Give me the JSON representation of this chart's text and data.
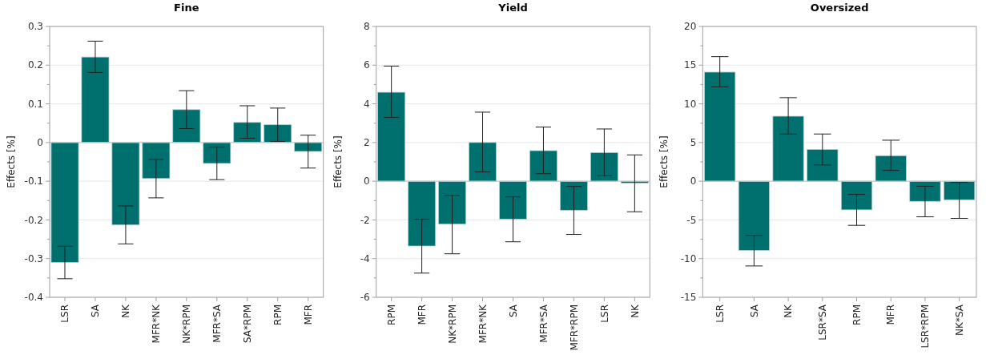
{
  "chart_data": [
    {
      "type": "bar",
      "title": "Fine",
      "ylabel": "Effects [%]",
      "categories": [
        "LSR",
        "SA",
        "NK",
        "MFR*NK",
        "NK*RPM",
        "MFR*SA",
        "SA*RPM",
        "RPM",
        "MFR"
      ],
      "values": [
        -0.31,
        0.221,
        -0.213,
        -0.093,
        0.085,
        -0.054,
        0.052,
        0.046,
        -0.023
      ],
      "color": "#00706f",
      "errors": [
        [
          -0.352,
          -0.268
        ],
        [
          0.181,
          0.262
        ],
        [
          -0.262,
          -0.164
        ],
        [
          -0.143,
          -0.044
        ],
        [
          0.036,
          0.134
        ],
        [
          -0.096,
          -0.012
        ],
        [
          0.011,
          0.095
        ],
        [
          0.003,
          0.089
        ],
        [
          -0.066,
          0.019
        ]
      ],
      "ylim": [
        -0.4,
        0.3
      ],
      "yticks": [
        {
          "value": -0.4,
          "label": "-0.4"
        },
        {
          "value": -0.35,
          "label": null
        },
        {
          "value": -0.3,
          "label": "-0.3"
        },
        {
          "value": -0.25,
          "label": null
        },
        {
          "value": -0.2,
          "label": "-0.2"
        },
        {
          "value": -0.15,
          "label": null
        },
        {
          "value": -0.1,
          "label": "-0.1"
        },
        {
          "value": -0.05,
          "label": null
        },
        0,
        {
          "value": 0.05,
          "label": null
        },
        0.1,
        {
          "value": 0.15,
          "label": null
        },
        0.2,
        {
          "value": 0.25,
          "label": null
        },
        0.3
      ],
      "grid": "y"
    },
    {
      "type": "bar",
      "title": "Yield",
      "ylabel": "Effects [%]",
      "categories": [
        "RPM",
        "MFR",
        "NK*RPM",
        "MFR*NK",
        "SA",
        "MFR*SA",
        "MFR*RPM",
        "LSR",
        "NK"
      ],
      "values": [
        4.6,
        -3.35,
        -2.22,
        2.0,
        -1.96,
        1.58,
        -1.5,
        1.48,
        -0.1
      ],
      "color": "#00706f",
      "errors": [
        [
          3.3,
          5.95
        ],
        [
          -4.75,
          -1.97
        ],
        [
          -3.75,
          -0.73
        ],
        [
          0.48,
          3.57
        ],
        [
          -3.13,
          -0.81
        ],
        [
          0.39,
          2.8
        ],
        [
          -2.75,
          -0.27
        ],
        [
          0.28,
          2.7
        ],
        [
          -1.58,
          1.36
        ]
      ],
      "ylim": [
        -6,
        8
      ],
      "yticks": [
        -6,
        {
          "value": -5,
          "label": null
        },
        -4,
        {
          "value": -3,
          "label": null
        },
        -2,
        {
          "value": -1,
          "label": null
        },
        0,
        {
          "value": 1,
          "label": null
        },
        2,
        {
          "value": 3,
          "label": null
        },
        4,
        {
          "value": 5,
          "label": null
        },
        6,
        {
          "value": 7,
          "label": null
        },
        8
      ],
      "grid": "y"
    },
    {
      "type": "bar",
      "title": "Oversized",
      "ylabel": "Effects [%]",
      "categories": [
        "LSR",
        "SA",
        "NK",
        "LSR*SA",
        "RPM",
        "MFR",
        "LSR*RPM",
        "NK*SA"
      ],
      "values": [
        14.1,
        -8.95,
        8.4,
        4.1,
        -3.7,
        3.3,
        -2.6,
        -2.4
      ],
      "color": "#00706f",
      "errors": [
        [
          12.2,
          16.1
        ],
        [
          -10.95,
          -7.0
        ],
        [
          6.1,
          10.8
        ],
        [
          2.1,
          6.1
        ],
        [
          -5.7,
          -1.7
        ],
        [
          1.4,
          5.3
        ],
        [
          -4.6,
          -0.65
        ],
        [
          -4.8,
          -0.15
        ]
      ],
      "ylim": [
        -15,
        20
      ],
      "yticks": [
        -15,
        {
          "value": -12.5,
          "label": null
        },
        -10,
        {
          "value": -7.5,
          "label": null
        },
        -5,
        {
          "value": -2.5,
          "label": null
        },
        0,
        {
          "value": 2.5,
          "label": null
        },
        5,
        {
          "value": 7.5,
          "label": null
        },
        10,
        {
          "value": 12.5,
          "label": null
        },
        15,
        {
          "value": 17.5,
          "label": null
        },
        20
      ],
      "grid": "y"
    }
  ]
}
